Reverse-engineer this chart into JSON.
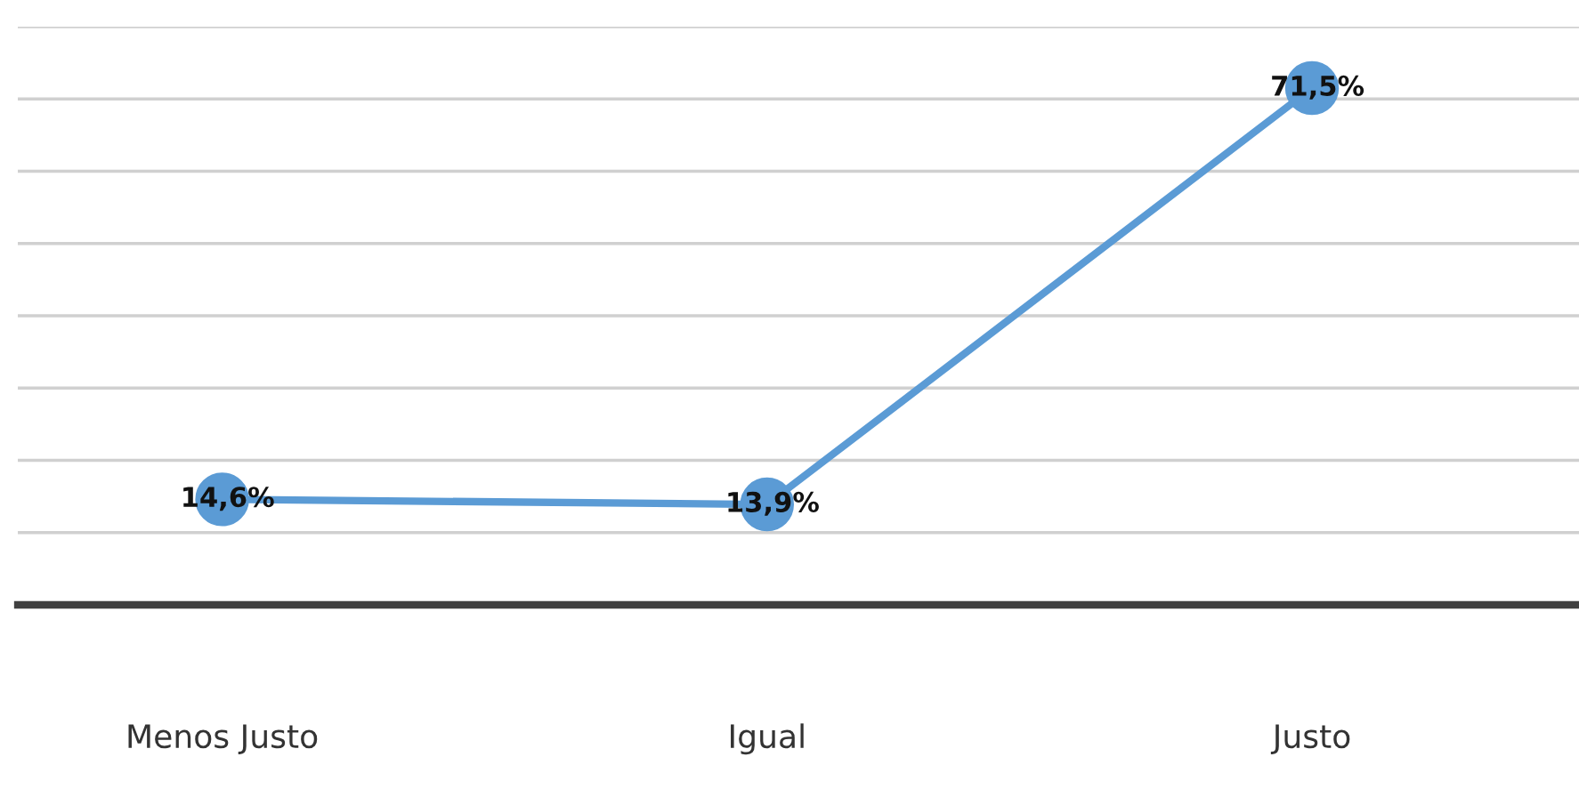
{
  "chart_data": {
    "type": "line",
    "categories": [
      "Menos Justo",
      "Igual",
      "Justo"
    ],
    "values": [
      14.6,
      13.9,
      71.5
    ],
    "value_labels": [
      "14,6%",
      "13,9%",
      "71,5%"
    ],
    "color": "#5b9bd5",
    "marker": "circle",
    "line_style": "solid",
    "ylim": [
      0,
      80
    ],
    "yticks": [
      {
        "value": 10,
        "label": null
      },
      {
        "value": 20,
        "label": null
      },
      {
        "value": 30,
        "label": null
      },
      {
        "value": 40,
        "label": null
      },
      {
        "value": 50,
        "label": null
      },
      {
        "value": 60,
        "label": null
      },
      {
        "value": 70,
        "label": null
      },
      {
        "value": 80,
        "label": null
      }
    ],
    "grid": "y",
    "tick_labels": "x"
  }
}
